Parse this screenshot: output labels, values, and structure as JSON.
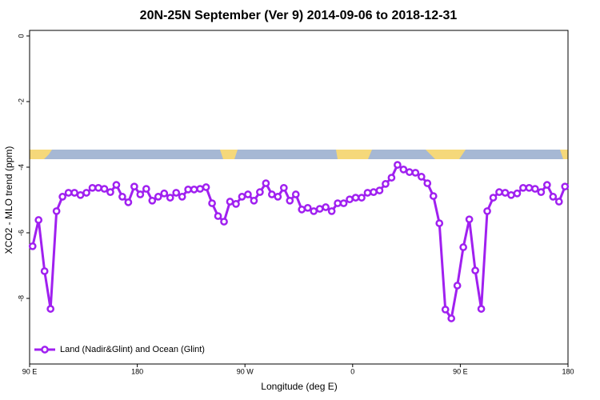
{
  "chart_data": {
    "type": "line",
    "title": "20N-25N September (Ver 9)   2014-09-06 to 2018-12-31",
    "x_label": "Longitude (deg E)",
    "y_label": "XCO2 - MLO trend (ppm)",
    "xlim": [
      90,
      540
    ],
    "xticks": [
      {
        "value": 90,
        "label": "90 E"
      },
      180,
      {
        "value": 270,
        "label": "90 W"
      },
      {
        "value": 360,
        "label": "0"
      },
      {
        "value": 450,
        "label": "90 E"
      },
      {
        "value": 540,
        "label": "180"
      }
    ],
    "ylim": [
      -10,
      0.17
    ],
    "yticks": [
      0,
      -2,
      -4,
      -6,
      -8
    ],
    "legend": "bottom-left",
    "x": [
      92.5,
      97.5,
      102.5,
      107.5,
      112.5,
      117.5,
      122.5,
      127.5,
      132.5,
      137.5,
      142.5,
      147.5,
      152.5,
      157.5,
      162.5,
      167.5,
      172.5,
      177.5,
      182.5,
      187.5,
      192.5,
      197.5,
      202.5,
      207.5,
      212.5,
      217.5,
      222.5,
      227.5,
      232.5,
      237.5,
      242.5,
      247.5,
      252.5,
      257.5,
      262.5,
      267.5,
      272.5,
      277.5,
      282.5,
      287.5,
      292.5,
      297.5,
      302.5,
      307.5,
      312.5,
      317.5,
      322.5,
      327.5,
      332.5,
      337.5,
      342.5,
      347.5,
      352.5,
      357.5,
      362.5,
      367.5,
      372.5,
      377.5,
      382.5,
      387.5,
      392.5,
      397.5,
      402.5,
      407.5,
      412.5,
      417.5,
      422.5,
      427.5,
      432.5,
      437.5,
      442.5,
      447.5,
      452.5,
      457.5,
      462.5,
      467.5,
      472.5,
      477.5,
      482.5,
      487.5,
      492.5,
      497.5,
      502.5,
      507.5,
      512.5,
      517.5,
      522.5,
      527.5,
      532.5,
      537.5
    ],
    "series": [
      {
        "name": "Land (Nadir&Glint) and Ocean (Glint)",
        "color": "#a020f0",
        "values": [
          -6.41,
          -5.61,
          -7.17,
          -8.32,
          -5.34,
          -4.9,
          -4.78,
          -4.78,
          -4.85,
          -4.78,
          -4.63,
          -4.63,
          -4.66,
          -4.76,
          -4.54,
          -4.9,
          -5.07,
          -4.59,
          -4.83,
          -4.66,
          -5.02,
          -4.9,
          -4.8,
          -4.93,
          -4.78,
          -4.9,
          -4.68,
          -4.68,
          -4.66,
          -4.61,
          -5.1,
          -5.49,
          -5.66,
          -5.05,
          -5.12,
          -4.9,
          -4.83,
          -5.02,
          -4.76,
          -4.49,
          -4.83,
          -4.9,
          -4.63,
          -5.02,
          -4.83,
          -5.29,
          -5.24,
          -5.34,
          -5.27,
          -5.22,
          -5.34,
          -5.1,
          -5.1,
          -4.98,
          -4.93,
          -4.93,
          -4.78,
          -4.76,
          -4.71,
          -4.51,
          -4.32,
          -3.93,
          -4.07,
          -4.15,
          -4.17,
          -4.29,
          -4.49,
          -4.88,
          -5.71,
          -8.34,
          -8.61,
          -7.61,
          -6.44,
          -5.59,
          -7.15,
          -8.32,
          -5.34,
          -4.93,
          -4.76,
          -4.78,
          -4.85,
          -4.8,
          -4.63,
          -4.63,
          -4.66,
          -4.76,
          -4.54,
          -4.9,
          -5.05,
          -4.59
        ]
      }
    ]
  }
}
